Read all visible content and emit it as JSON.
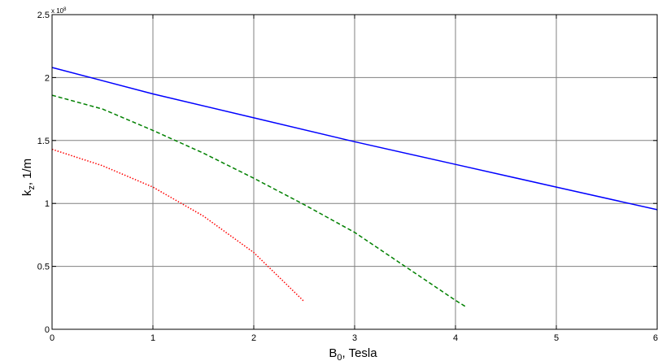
{
  "chart_data": {
    "type": "line",
    "title": "",
    "xlabel": "B",
    "xlabel_sub": "0",
    "xlabel_rest": ", Tesla",
    "ylabel": "k",
    "ylabel_sub": "z",
    "ylabel_rest": ", 1/m",
    "y_exponent_base": "x 10",
    "y_exponent_power": "8",
    "xlim": [
      0,
      6
    ],
    "ylim": [
      0,
      2.5
    ],
    "x_ticks": [
      "0",
      "1",
      "2",
      "3",
      "4",
      "5",
      "6"
    ],
    "y_ticks": [
      "0",
      "0.5",
      "1",
      "1.5",
      "2",
      "2.5"
    ],
    "grid": true,
    "series": [
      {
        "color": "#0000ff",
        "style": "solid",
        "x": [
          0,
          1,
          2,
          3,
          4,
          5,
          6
        ],
        "y": [
          2.08,
          1.87,
          1.68,
          1.49,
          1.31,
          1.13,
          0.95
        ]
      },
      {
        "color": "#008000",
        "style": "dashed",
        "x": [
          0,
          0.5,
          1,
          1.5,
          2,
          2.5,
          3,
          3.5,
          4,
          4.1
        ],
        "y": [
          1.86,
          1.75,
          1.58,
          1.4,
          1.2,
          0.99,
          0.77,
          0.5,
          0.23,
          0.18
        ]
      },
      {
        "color": "#ff0000",
        "style": "dotted",
        "x": [
          0,
          0.5,
          1,
          1.5,
          2,
          2.5
        ],
        "y": [
          1.43,
          1.3,
          1.13,
          0.9,
          0.61,
          0.22
        ]
      }
    ]
  }
}
